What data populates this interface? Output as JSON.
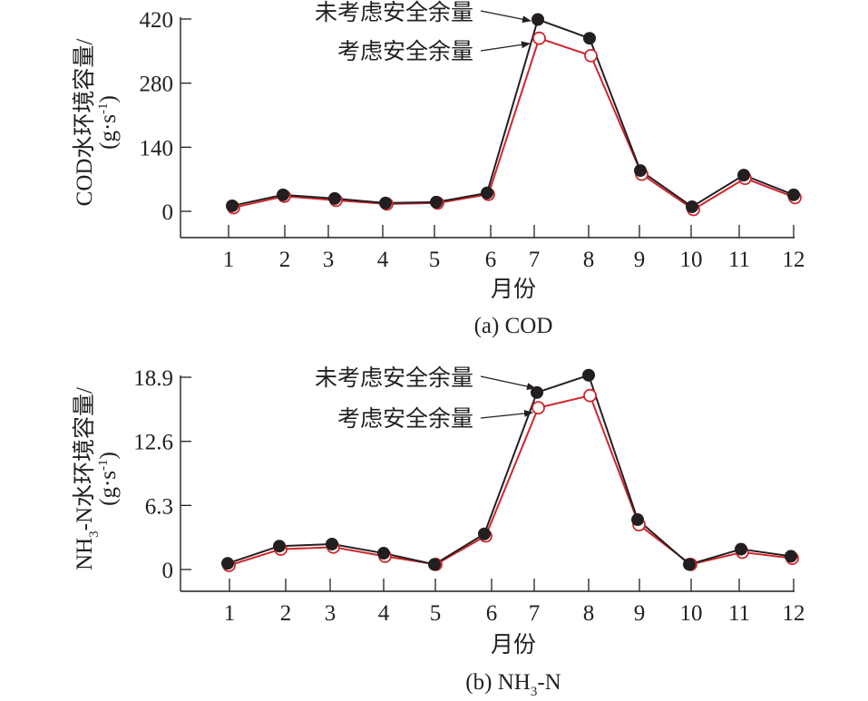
{
  "colors": {
    "no_margin": "#231f20",
    "with_margin": "#d0252b",
    "axis": "#231f20"
  },
  "chart_data": [
    {
      "type": "line",
      "id": "cod",
      "title": "(a) COD",
      "xlabel": "月份",
      "ylabel_line1": "COD水环境容量/",
      "ylabel_line2_base": "(g·s",
      "ylabel_line2_sup": "-1",
      "ylabel_line2_end": ")",
      "categories": [
        "1",
        "2",
        "3",
        "4",
        "5",
        "6",
        "7",
        "8",
        "9",
        "10",
        "11",
        "12"
      ],
      "yticks": [
        "0",
        "140",
        "280",
        "420"
      ],
      "ytick_values": [
        0,
        140,
        280,
        420
      ],
      "ylim": [
        -60,
        420
      ],
      "legend": "annotations",
      "series": [
        {
          "name": "未考虑安全余量",
          "marker": "filled-circle",
          "values": [
            12,
            36,
            28,
            18,
            20,
            40,
            419,
            378,
            89,
            10,
            79,
            36
          ]
        },
        {
          "name": "考虑安全余量",
          "marker": "open-circle",
          "values": [
            8,
            33,
            24,
            16,
            18,
            37,
            378,
            340,
            81,
            4,
            72,
            30
          ]
        }
      ],
      "annotations": [
        "未考虑安全余量",
        "考虑安全余量"
      ]
    },
    {
      "type": "line",
      "id": "nh3n",
      "title_base": "(b) NH",
      "title_sub": "3",
      "title_end": "-N",
      "xlabel": "月份",
      "ylabel_line1_base": "NH",
      "ylabel_line1_sub": "3",
      "ylabel_line1_end": "-N水环境容量/",
      "ylabel_line2_base": "(g·s",
      "ylabel_line2_sup": "-1",
      "ylabel_line2_end": ")",
      "categories": [
        "1",
        "2",
        "3",
        "4",
        "5",
        "6",
        "7",
        "8",
        "9",
        "10",
        "11",
        "12"
      ],
      "yticks": [
        "0",
        "6.3",
        "12.6",
        "18.9"
      ],
      "ytick_values": [
        0,
        6.3,
        12.6,
        18.9
      ],
      "ylim": [
        -2.2,
        18.9
      ],
      "legend": "annotations",
      "series": [
        {
          "name": "未考虑安全余量",
          "marker": "filled-circle",
          "values": [
            0.6,
            2.3,
            2.5,
            1.6,
            0.5,
            3.5,
            17.4,
            19.1,
            4.9,
            0.5,
            2.0,
            1.3
          ]
        },
        {
          "name": "考虑安全余量",
          "marker": "open-circle",
          "values": [
            0.4,
            2.0,
            2.2,
            1.3,
            0.5,
            3.3,
            15.9,
            17.1,
            4.4,
            0.5,
            1.7,
            1.1
          ]
        }
      ],
      "annotations": [
        "未考虑安全余量",
        "考虑安全余量"
      ]
    }
  ]
}
